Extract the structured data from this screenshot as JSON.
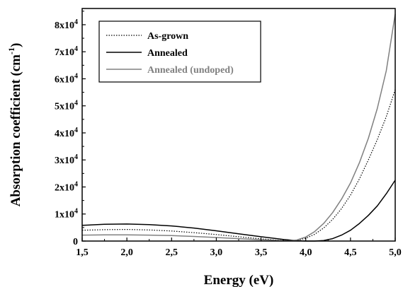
{
  "chart_data": {
    "type": "line",
    "xlabel": "Energy (eV)",
    "ylabel_main": "Absorption coefficient (cm",
    "ylabel_sup": "-1",
    "ylabel_close": ")",
    "xlim": [
      1.5,
      5.0
    ],
    "ylim": [
      0,
      86000
    ],
    "x_ticks": [
      1.5,
      2.0,
      2.5,
      3.0,
      3.5,
      4.0,
      4.5,
      5.0
    ],
    "x_tick_labels": [
      "1,5",
      "2,0",
      "2,5",
      "3,0",
      "3,5",
      "4,0",
      "4,5",
      "5,0"
    ],
    "y_ticks": [
      0,
      10000,
      20000,
      30000,
      40000,
      50000,
      60000,
      70000,
      80000
    ],
    "y_tick_labels": [
      {
        "base": "0",
        "exp": ""
      },
      {
        "base": "1x10",
        "exp": "4"
      },
      {
        "base": "2x10",
        "exp": "4"
      },
      {
        "base": "3x10",
        "exp": "4"
      },
      {
        "base": "4x10",
        "exp": "4"
      },
      {
        "base": "5x10",
        "exp": "4"
      },
      {
        "base": "6x10",
        "exp": "4"
      },
      {
        "base": "7x10",
        "exp": "4"
      },
      {
        "base": "8x10",
        "exp": "4"
      }
    ],
    "legend_position": "top-left",
    "series": [
      {
        "name": "As-grown",
        "color": "#000000",
        "style": "dotted",
        "points": [
          [
            1.5,
            4000
          ],
          [
            1.75,
            4200
          ],
          [
            2.0,
            4300
          ],
          [
            2.25,
            4100
          ],
          [
            2.5,
            3700
          ],
          [
            2.75,
            3100
          ],
          [
            3.0,
            2400
          ],
          [
            3.25,
            1600
          ],
          [
            3.5,
            800
          ],
          [
            3.7,
            300
          ],
          [
            3.8,
            150
          ],
          [
            3.9,
            300
          ],
          [
            4.0,
            1000
          ],
          [
            4.1,
            2500
          ],
          [
            4.2,
            4800
          ],
          [
            4.3,
            8000
          ],
          [
            4.4,
            12000
          ],
          [
            4.5,
            17000
          ],
          [
            4.6,
            23000
          ],
          [
            4.7,
            30000
          ],
          [
            4.8,
            37500
          ],
          [
            4.9,
            46000
          ],
          [
            5.0,
            56000
          ]
        ]
      },
      {
        "name": "Annealed",
        "color": "#000000",
        "style": "solid",
        "points": [
          [
            1.5,
            5800
          ],
          [
            1.75,
            6200
          ],
          [
            2.0,
            6300
          ],
          [
            2.25,
            6100
          ],
          [
            2.5,
            5600
          ],
          [
            2.75,
            4800
          ],
          [
            3.0,
            3800
          ],
          [
            3.25,
            2700
          ],
          [
            3.5,
            1600
          ],
          [
            3.75,
            600
          ],
          [
            3.9,
            150
          ],
          [
            4.0,
            0
          ],
          [
            4.1,
            0
          ],
          [
            4.2,
            200
          ],
          [
            4.3,
            900
          ],
          [
            4.4,
            2200
          ],
          [
            4.5,
            4000
          ],
          [
            4.6,
            6500
          ],
          [
            4.7,
            9500
          ],
          [
            4.8,
            13000
          ],
          [
            4.9,
            17500
          ],
          [
            5.0,
            22500
          ]
        ]
      },
      {
        "name": "Annealed (undoped)",
        "color": "#808080",
        "style": "solid",
        "points": [
          [
            1.5,
            2200
          ],
          [
            1.75,
            2300
          ],
          [
            2.0,
            2300
          ],
          [
            2.25,
            2200
          ],
          [
            2.5,
            2000
          ],
          [
            2.75,
            1700
          ],
          [
            3.0,
            1300
          ],
          [
            3.25,
            900
          ],
          [
            3.5,
            500
          ],
          [
            3.7,
            200
          ],
          [
            3.8,
            100
          ],
          [
            3.9,
            400
          ],
          [
            4.0,
            1500
          ],
          [
            4.1,
            3500
          ],
          [
            4.2,
            6500
          ],
          [
            4.3,
            10500
          ],
          [
            4.4,
            15500
          ],
          [
            4.5,
            21500
          ],
          [
            4.6,
            29000
          ],
          [
            4.7,
            38000
          ],
          [
            4.8,
            49000
          ],
          [
            4.9,
            63000
          ],
          [
            5.0,
            84000
          ]
        ]
      }
    ]
  }
}
